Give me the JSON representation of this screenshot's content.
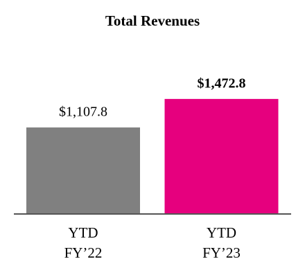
{
  "chart_data": {
    "type": "bar",
    "title": "Total Revenues",
    "categories": [
      "YTD FY’22",
      "YTD FY’23"
    ],
    "values": [
      1107.8,
      1472.8
    ],
    "value_labels": [
      "$1,107.8",
      "$1,472.8"
    ],
    "colors": [
      "#808080",
      "#e6007e"
    ],
    "ylim": [
      0,
      2400
    ]
  }
}
